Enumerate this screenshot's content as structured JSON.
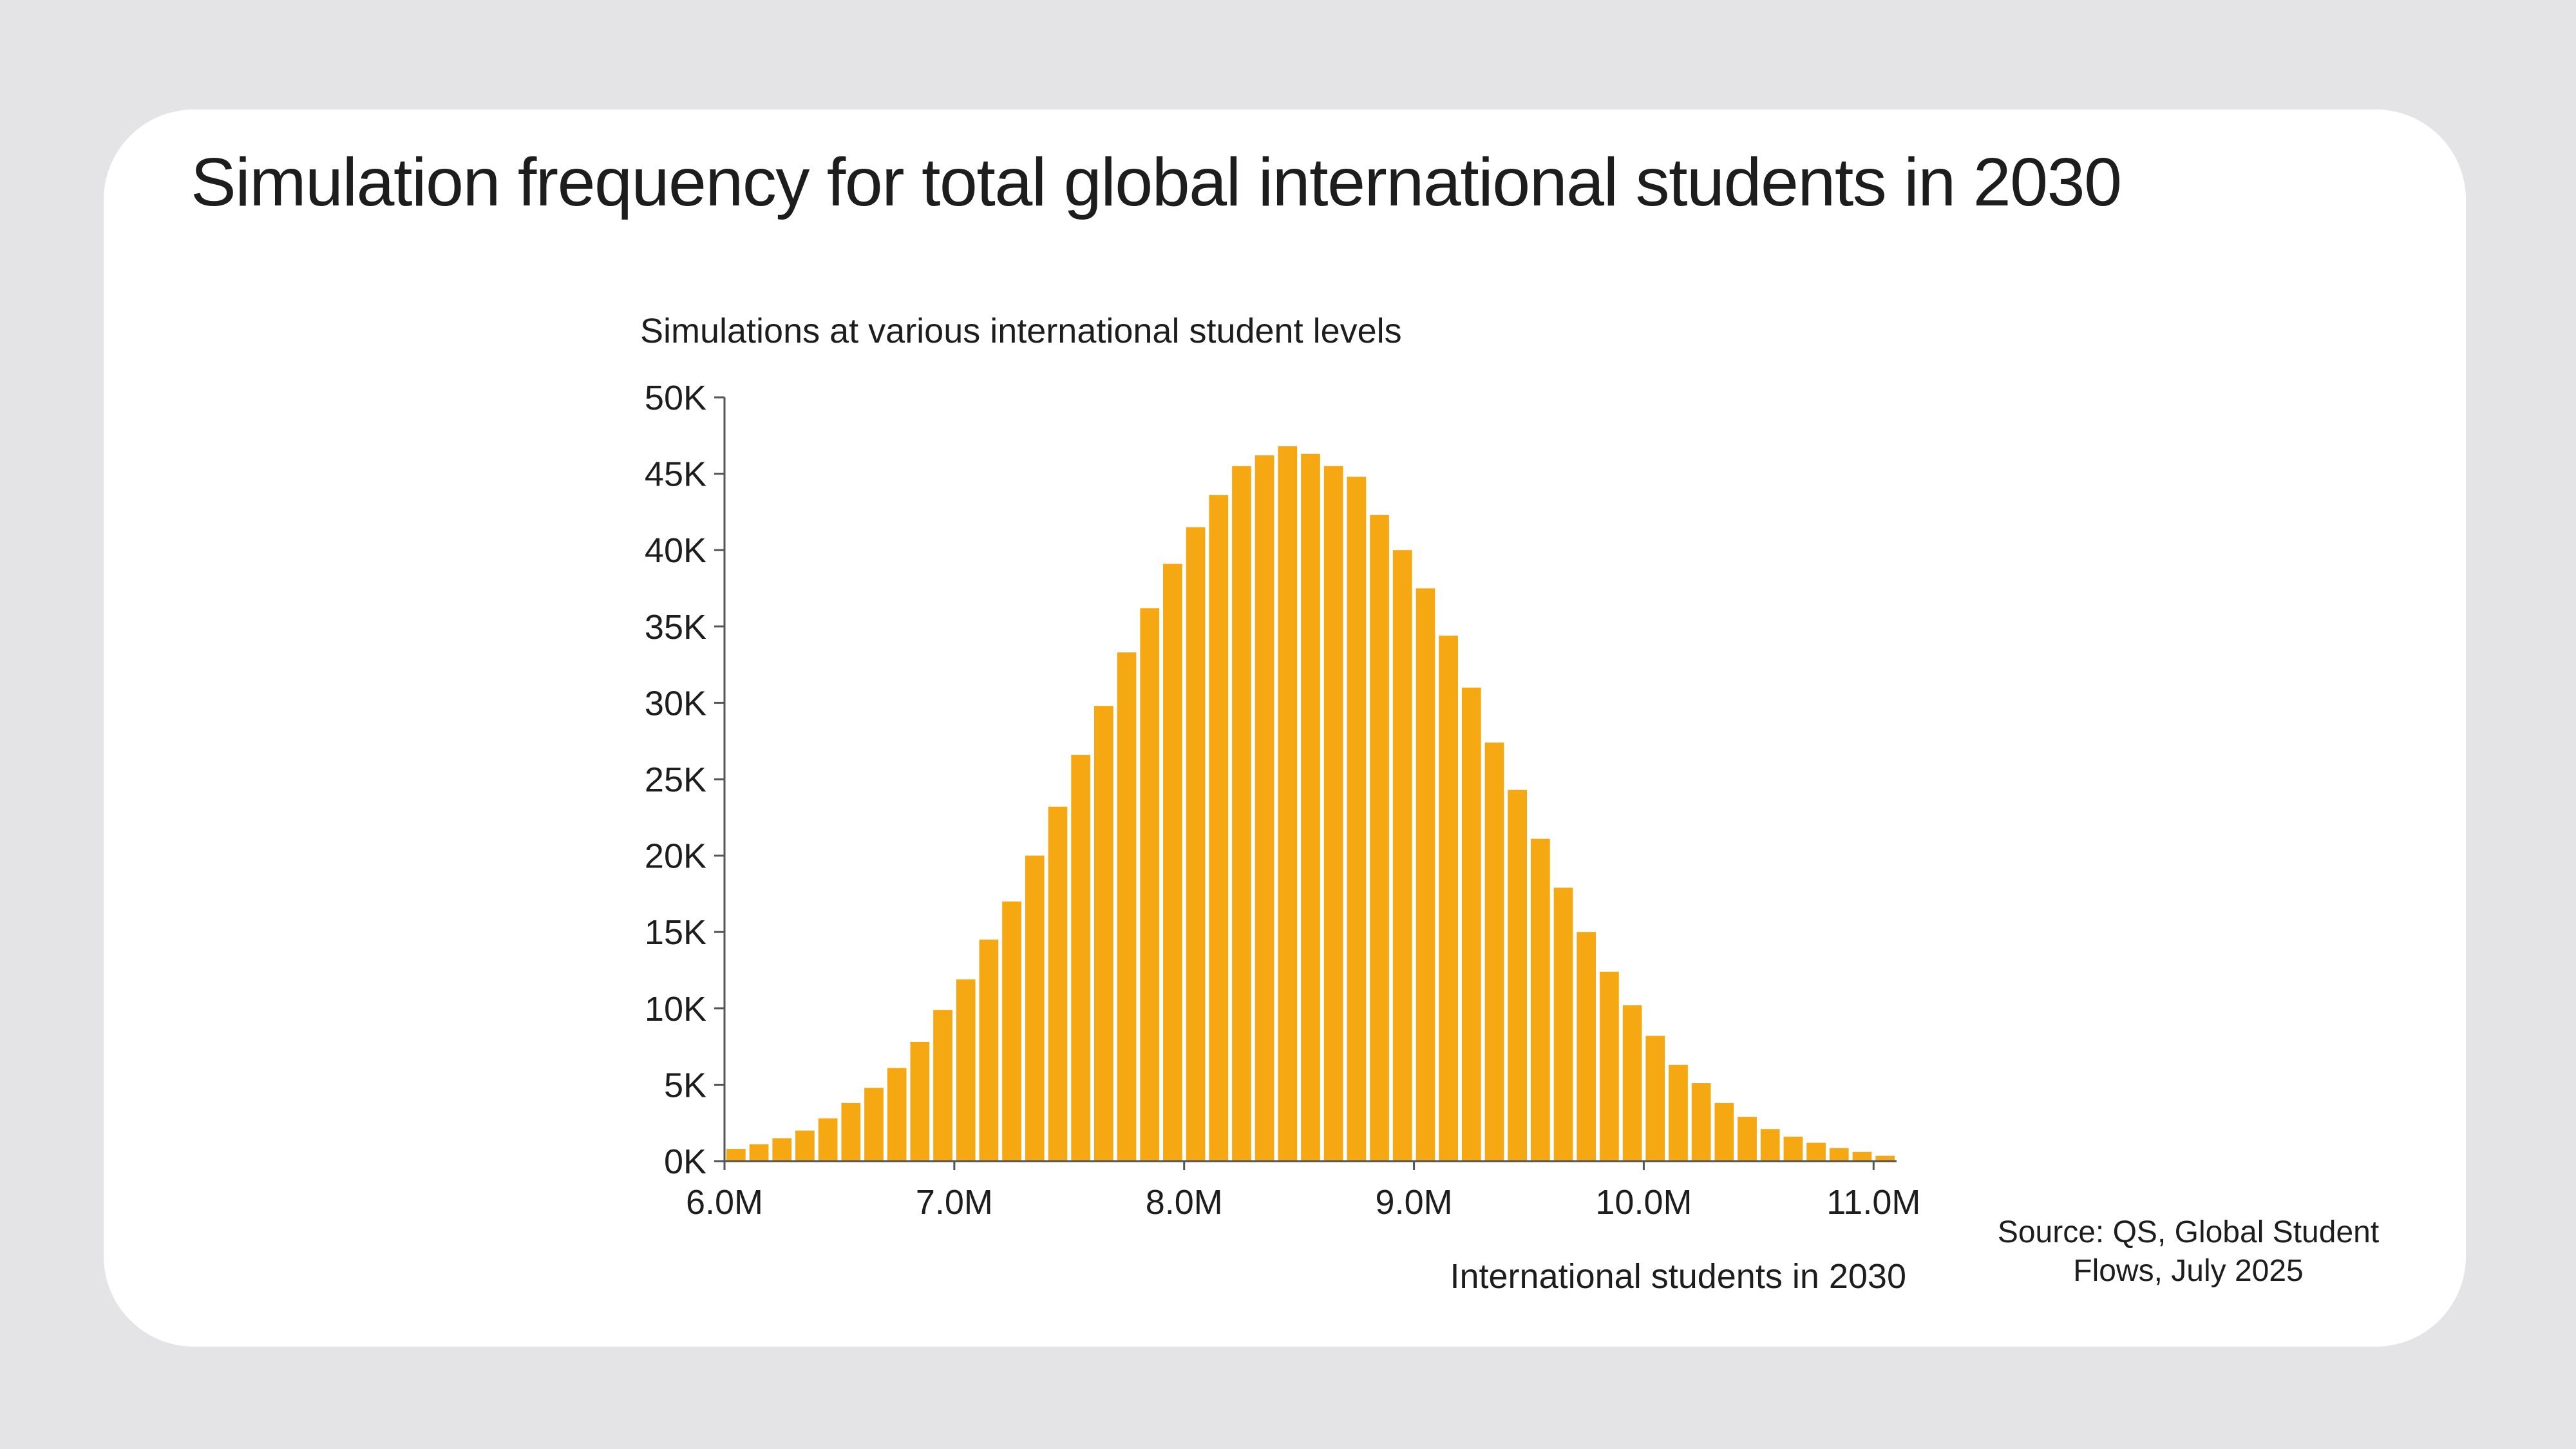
{
  "chart_data": {
    "type": "bar",
    "title": "Simulation frequency for total global international students in 2030",
    "subtitle": "Simulations at various international student levels",
    "xlabel": "International students in 2030",
    "ylabel": "",
    "source_lines": [
      "Source: QS, Global Student",
      "Flows, July 2025"
    ],
    "ylim": [
      0,
      50000
    ],
    "xlim": [
      6.0,
      11.1
    ],
    "y_ticks": [
      0,
      5000,
      10000,
      15000,
      20000,
      25000,
      30000,
      35000,
      40000,
      45000,
      50000
    ],
    "y_tick_labels": [
      "0K",
      "5K",
      "10K",
      "15K",
      "20K",
      "25K",
      "30K",
      "35K",
      "40K",
      "45K",
      "50K"
    ],
    "x_ticks": [
      6.0,
      7.0,
      8.0,
      9.0,
      10.0,
      11.0
    ],
    "x_tick_labels": [
      "6.0M",
      "7.0M",
      "8.0M",
      "9.0M",
      "10.0M",
      "11.0M"
    ],
    "bar_width": 0.1,
    "bin_starts": [
      6.0,
      6.1,
      6.2,
      6.3,
      6.4,
      6.5,
      6.6,
      6.7,
      6.8,
      6.9,
      7.0,
      7.1,
      7.2,
      7.3,
      7.4,
      7.5,
      7.6,
      7.7,
      7.8,
      7.9,
      8.0,
      8.1,
      8.2,
      8.3,
      8.4,
      8.5,
      8.6,
      8.7,
      8.8,
      8.9,
      9.0,
      9.1,
      9.2,
      9.3,
      9.4,
      9.5,
      9.6,
      9.7,
      9.8,
      9.9,
      10.0,
      10.1,
      10.2,
      10.3,
      10.4,
      10.5,
      10.6,
      10.7,
      10.8,
      10.9,
      11.0
    ],
    "values": [
      800,
      1100,
      1500,
      2000,
      2800,
      3800,
      4800,
      6100,
      7800,
      9900,
      11900,
      14500,
      17000,
      20000,
      23200,
      26600,
      29800,
      33300,
      36200,
      39100,
      41500,
      43600,
      45500,
      46200,
      46800,
      46300,
      45500,
      44800,
      42300,
      40000,
      37500,
      34400,
      31000,
      27400,
      24300,
      21100,
      17900,
      15000,
      12400,
      10200,
      8200,
      6300,
      5100,
      3800,
      2900,
      2100,
      1600,
      1200,
      850,
      600,
      350
    ],
    "bar_color": "#f5a812",
    "grid": false,
    "legend": "none"
  }
}
